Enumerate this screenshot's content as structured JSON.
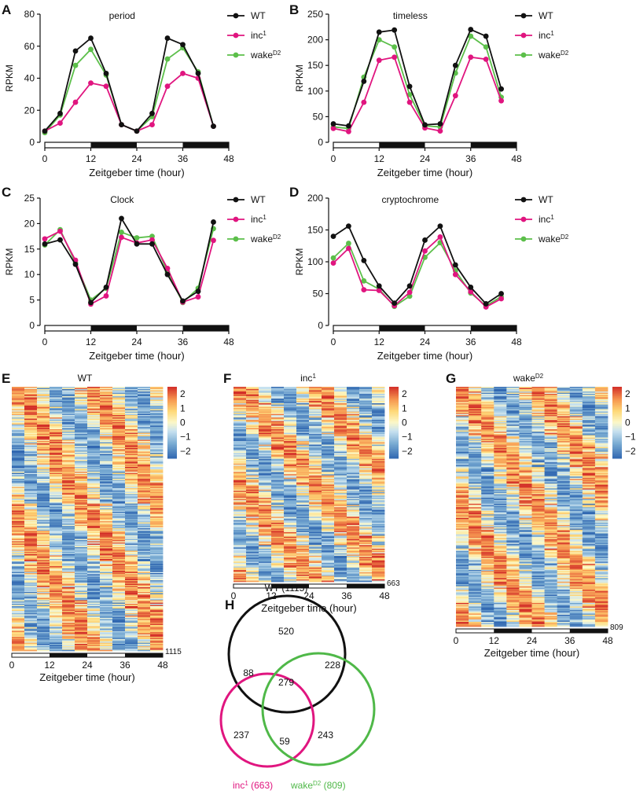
{
  "colors": {
    "wt": "#111111",
    "inc": "#e0157f",
    "wake": "#5cbf4a",
    "venn_wt": "#111111",
    "venn_inc": "#e0157f",
    "venn_wake": "#4fb848"
  },
  "common": {
    "xlabel": "Zeitgeber time (hour)",
    "ylabel": "RPKM",
    "legend": {
      "wt": "WT",
      "inc_base": "inc",
      "inc_sup": "1",
      "wake_base": "wake",
      "wake_sup": "D2"
    }
  },
  "chart_data": [
    {
      "panel": "A",
      "type": "line",
      "title": "period",
      "x": [
        0,
        4,
        8,
        12,
        16,
        20,
        24,
        28,
        32,
        36,
        40,
        44
      ],
      "ylim": [
        0,
        80
      ],
      "yticks": [
        0,
        20,
        40,
        60,
        80
      ],
      "xticks": [
        0,
        12,
        24,
        36,
        48
      ],
      "series": [
        {
          "name": "WT",
          "key": "wt",
          "values": [
            7,
            18,
            57,
            65,
            43,
            11,
            7,
            18,
            65,
            61,
            43,
            10
          ]
        },
        {
          "name": "inc1",
          "key": "inc",
          "values": [
            7,
            12,
            25,
            37,
            35,
            11,
            7,
            11,
            35,
            43,
            40,
            10
          ]
        },
        {
          "name": "wakeD2",
          "key": "wake",
          "values": [
            6,
            17,
            48,
            58,
            42,
            11,
            7,
            16,
            52,
            59,
            44,
            10
          ]
        }
      ]
    },
    {
      "panel": "B",
      "type": "line",
      "title": "timeless",
      "x": [
        0,
        4,
        8,
        12,
        16,
        20,
        24,
        28,
        32,
        36,
        40,
        44
      ],
      "ylim": [
        0,
        250
      ],
      "yticks": [
        0,
        50,
        100,
        150,
        200,
        250
      ],
      "xticks": [
        0,
        12,
        24,
        36,
        48
      ],
      "series": [
        {
          "name": "WT",
          "key": "wt",
          "values": [
            36,
            32,
            119,
            215,
            219,
            109,
            34,
            36,
            150,
            220,
            207,
            104
          ]
        },
        {
          "name": "inc1",
          "key": "inc",
          "values": [
            27,
            21,
            78,
            160,
            166,
            78,
            28,
            22,
            91,
            166,
            162,
            81
          ]
        },
        {
          "name": "wakeD2",
          "key": "wake",
          "values": [
            30,
            27,
            127,
            200,
            186,
            93,
            32,
            30,
            135,
            207,
            186,
            88
          ]
        }
      ]
    },
    {
      "panel": "C",
      "type": "line",
      "title": "Clock",
      "x": [
        0,
        4,
        8,
        12,
        16,
        20,
        24,
        28,
        32,
        36,
        40,
        44
      ],
      "ylim": [
        0,
        25
      ],
      "yticks": [
        0,
        5,
        10,
        15,
        20,
        25
      ],
      "xticks": [
        0,
        12,
        24,
        36,
        48
      ],
      "series": [
        {
          "name": "WT",
          "key": "wt",
          "values": [
            16,
            16.8,
            12,
            4.5,
            7.5,
            21,
            16,
            16,
            10,
            4.8,
            6.7,
            20.3
          ]
        },
        {
          "name": "inc1",
          "key": "inc",
          "values": [
            17,
            18.5,
            12.8,
            4.2,
            5.8,
            17.3,
            16.2,
            16.8,
            11.2,
            4.6,
            5.6,
            16.7
          ]
        },
        {
          "name": "wakeD2",
          "key": "wake",
          "values": [
            15.8,
            18.8,
            12.3,
            5,
            7.3,
            18.3,
            17.2,
            17.5,
            10.5,
            4.5,
            7.3,
            19
          ]
        }
      ]
    },
    {
      "panel": "D",
      "type": "line",
      "title": "cryptochrome",
      "x": [
        0,
        4,
        8,
        12,
        16,
        20,
        24,
        28,
        32,
        36,
        40,
        44
      ],
      "ylim": [
        0,
        200
      ],
      "yticks": [
        0,
        50,
        100,
        150,
        200
      ],
      "xticks": [
        0,
        12,
        24,
        36,
        48
      ],
      "series": [
        {
          "name": "WT",
          "key": "wt",
          "values": [
            140,
            156,
            102,
            62,
            35,
            62,
            134,
            156,
            95,
            60,
            34,
            50
          ]
        },
        {
          "name": "inc1",
          "key": "inc",
          "values": [
            98,
            121,
            56,
            55,
            31,
            52,
            117,
            139,
            80,
            53,
            29,
            42
          ]
        },
        {
          "name": "wakeD2",
          "key": "wake",
          "values": [
            106,
            129,
            70,
            57,
            30,
            46,
            107,
            130,
            86,
            51,
            31,
            45
          ]
        }
      ]
    },
    {
      "panel": "E",
      "type": "heatmap",
      "title": "WT",
      "title_sup": "",
      "rows": 1115,
      "row_label": "1115",
      "columns": 12,
      "xticks": [
        0,
        12,
        24,
        36,
        48
      ],
      "colorbar": {
        "ticks": [
          2,
          1,
          0,
          -1,
          -2
        ],
        "labels": [
          "2",
          "1",
          "0",
          "−1",
          "−2"
        ],
        "range": [
          -2.5,
          2.5
        ]
      }
    },
    {
      "panel": "F",
      "type": "heatmap",
      "title": "inc",
      "title_sup": "1",
      "rows": 663,
      "row_label": "663",
      "columns": 12,
      "xticks": [
        0,
        12,
        24,
        36,
        48
      ],
      "colorbar": {
        "ticks": [
          2,
          1,
          0,
          -1,
          -2
        ],
        "labels": [
          "2",
          "1",
          "0",
          "−1",
          "−2"
        ],
        "range": [
          -2.5,
          2.5
        ]
      }
    },
    {
      "panel": "G",
      "type": "heatmap",
      "title": "wake",
      "title_sup": "D2",
      "rows": 809,
      "row_label": "809",
      "columns": 12,
      "xticks": [
        0,
        12,
        24,
        36,
        48
      ],
      "colorbar": {
        "ticks": [
          2,
          1,
          0,
          -1,
          -2
        ],
        "labels": [
          "2",
          "1",
          "0",
          "−1",
          "−2"
        ],
        "range": [
          -2.5,
          2.5
        ]
      }
    },
    {
      "panel": "H",
      "type": "venn",
      "sets": [
        {
          "key": "wt",
          "label": "WT (1115)",
          "size": 1115
        },
        {
          "key": "inc",
          "label_base": "inc",
          "label_sup": "1",
          "label_rest": " (663)",
          "size": 663
        },
        {
          "key": "wake",
          "label_base": "wake",
          "label_sup": "D2",
          "label_rest": " (809)",
          "size": 809
        }
      ],
      "regions": {
        "wt_only": "520",
        "wt_inc": "88",
        "wt_wake": "228",
        "all": "279",
        "inc_only": "237",
        "inc_wake": "59",
        "wake_only": "243"
      }
    }
  ]
}
